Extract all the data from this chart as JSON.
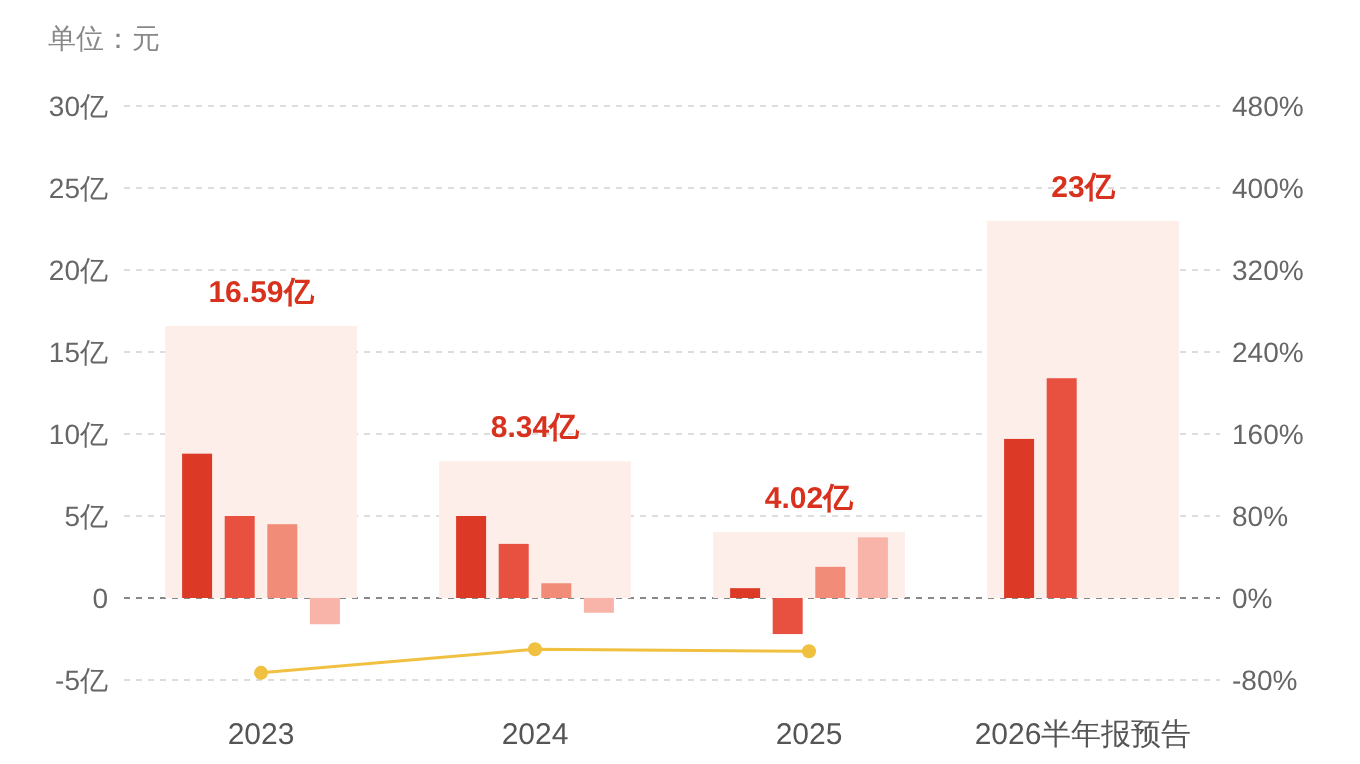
{
  "chart_data": {
    "type": "bar",
    "categories": [
      "2023",
      "2024",
      "2025",
      "2026半年报预告"
    ],
    "series": [
      {
        "color": "#fdeee9",
        "values": [
          16.59,
          8.34,
          4.02,
          23
        ],
        "value_labels": [
          "16.59亿",
          "8.34亿",
          "4.02亿",
          "23亿"
        ]
      },
      {
        "color": "#dc3a26",
        "values": [
          8.8,
          5,
          0.6,
          9.7
        ]
      },
      {
        "color": "#e8503f",
        "values": [
          5,
          3.3,
          -2.2,
          13.4
        ]
      },
      {
        "color": "#f08c78",
        "values": [
          4.5,
          0.9,
          1.9,
          null
        ]
      },
      {
        "color": "#f8b4a8",
        "values": [
          -1.6,
          -0.9,
          3.7,
          null
        ]
      },
      {
        "type": "line",
        "axis": "y2",
        "color": "#f0c040",
        "marker": "circle",
        "values": [
          -73,
          -50,
          -52,
          null
        ]
      }
    ],
    "ylim": [
      -5,
      30
    ],
    "yticks": [
      {
        "value": -5,
        "label": "-5亿"
      },
      0,
      {
        "value": 5,
        "label": "5亿"
      },
      {
        "value": 10,
        "label": "10亿"
      },
      {
        "value": 15,
        "label": "15亿"
      },
      {
        "value": 20,
        "label": "20亿"
      },
      {
        "value": 25,
        "label": "25亿"
      },
      {
        "value": 30,
        "label": "30亿"
      }
    ],
    "y2lim": [
      -80,
      480
    ],
    "y2ticks": [
      {
        "value": -80,
        "label": "-80%"
      },
      {
        "value": 0,
        "label": "0%"
      },
      {
        "value": 80,
        "label": "80%"
      },
      {
        "value": 160,
        "label": "160%"
      },
      {
        "value": 240,
        "label": "240%"
      },
      {
        "value": 320,
        "label": "320%"
      },
      {
        "value": 400,
        "label": "400%"
      },
      {
        "value": 480,
        "label": "480%"
      }
    ],
    "ref_lines": [
      {
        "axis": "y",
        "value": 0,
        "color": "#888888",
        "line_style": "dashed"
      }
    ],
    "grid": "y",
    "annotations": [
      "单位：元"
    ]
  }
}
